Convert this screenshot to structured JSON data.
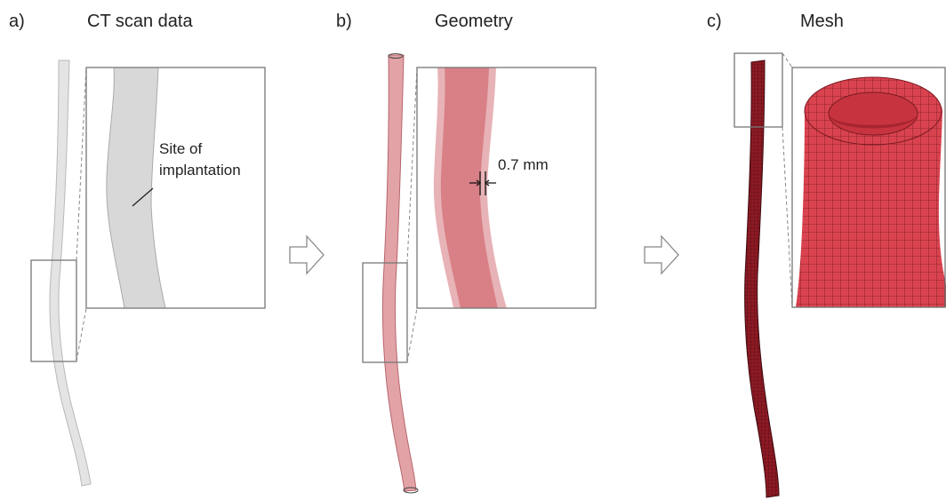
{
  "panels": [
    {
      "label": "a)",
      "title": "CT scan data",
      "annotation": [
        "Site of",
        "implantation"
      ]
    },
    {
      "label": "b)",
      "title": "Geometry",
      "annotation": "0.7 mm"
    },
    {
      "label": "c)",
      "title": "Mesh"
    }
  ]
}
